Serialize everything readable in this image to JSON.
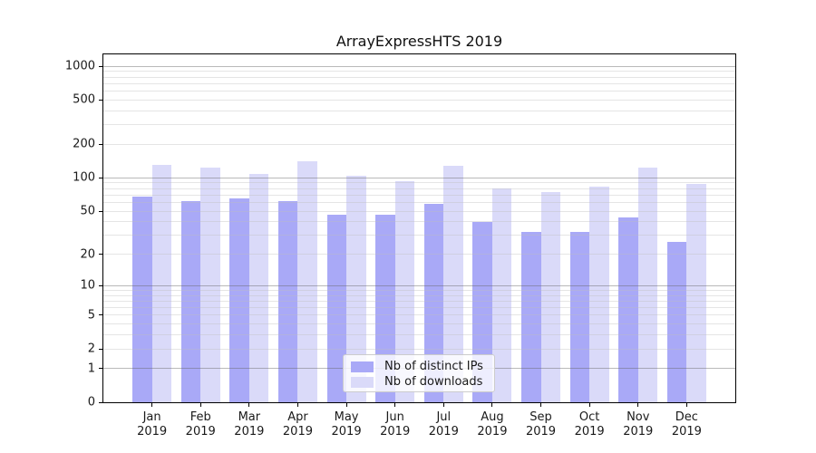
{
  "chart_data": {
    "type": "bar",
    "title": "ArrayExpressHTS 2019",
    "categories": [
      "Jan 2019",
      "Feb 2019",
      "Mar 2019",
      "Apr 2019",
      "May 2019",
      "Jun 2019",
      "Jul 2019",
      "Aug 2019",
      "Sep 2019",
      "Oct 2019",
      "Nov 2019",
      "Dec 2019"
    ],
    "series": [
      {
        "name": "Nb of distinct IPs",
        "color": "#a9a9f7",
        "values": [
          68,
          62,
          65,
          62,
          46,
          46,
          58,
          40,
          32,
          32,
          44,
          26
        ]
      },
      {
        "name": "Nb of downloads",
        "color": "#dadaf9",
        "values": [
          132,
          124,
          108,
          140,
          104,
          93,
          129,
          81,
          74,
          84,
          125,
          88
        ]
      }
    ],
    "y_axis": {
      "scale": "log1p",
      "ticks": [
        0,
        1,
        2,
        5,
        10,
        20,
        50,
        100,
        200,
        500,
        1000
      ],
      "major_gridlines": [
        1,
        10,
        100,
        1000
      ],
      "max": 1282
    },
    "grid": true,
    "legend_position": "lower-center",
    "xlabel": "",
    "ylabel": ""
  }
}
